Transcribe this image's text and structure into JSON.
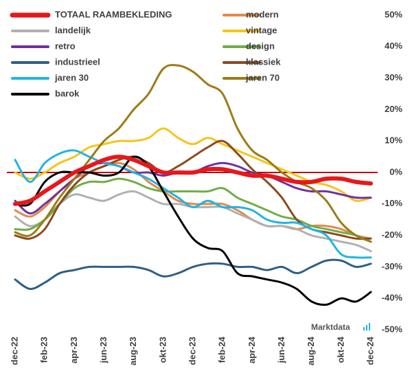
{
  "chart_data": {
    "type": "line",
    "categories": [
      "dec-22",
      null,
      "feb-23",
      null,
      "apr-23",
      null,
      "jun-23",
      null,
      "aug-23",
      null,
      "okt-23",
      null,
      "dec-23",
      null,
      "feb-24",
      null,
      "apr-24",
      null,
      "jun-24",
      null,
      "aug-24",
      null,
      "okt-24",
      null,
      "dec-24"
    ],
    "series": [
      {
        "name": "TOTAAL RAAMBEKLEDING",
        "color": "#e8171b",
        "width": 6,
        "values": [
          -10,
          -9,
          -6,
          -3,
          0,
          2,
          4,
          5,
          4,
          2,
          0,
          0,
          0,
          1,
          1,
          0,
          -1,
          -1,
          -2,
          -3,
          -3,
          -2,
          -2,
          -3,
          -3.5
        ]
      },
      {
        "name": "modern",
        "color": "#e3894a",
        "width": 3,
        "values": [
          -12,
          -14,
          -11,
          -6,
          -2,
          0,
          2,
          3,
          1,
          -3,
          -6,
          -9,
          -10,
          -10,
          -10,
          -12,
          -15,
          -17,
          -17,
          -18,
          -17,
          -17,
          -18,
          -20,
          -21
        ]
      },
      {
        "name": "landelijk",
        "color": "#b0b0b0",
        "width": 3,
        "values": [
          -14,
          -17,
          -15,
          -10,
          -7,
          -8,
          -9,
          -7,
          -6,
          -8,
          -10,
          -10,
          -11,
          -11,
          -11,
          -13,
          -15,
          -17,
          -17,
          -18,
          -20,
          -21,
          -22,
          -23,
          -25
        ]
      },
      {
        "name": "vintage",
        "color": "#f5c518",
        "width": 3,
        "values": [
          0,
          -2,
          0,
          3,
          5,
          8,
          9,
          10,
          10,
          11,
          14,
          11,
          9,
          11,
          9,
          7,
          5,
          3,
          1,
          -1,
          -3,
          -4,
          -6,
          -9,
          -8
        ]
      },
      {
        "name": "retro",
        "color": "#7030a0",
        "width": 3,
        "values": [
          -9,
          -13,
          -10,
          -6,
          -2,
          2,
          3,
          2,
          0,
          0,
          -1,
          0,
          0,
          2,
          3,
          2,
          0,
          -1,
          -3,
          -5,
          -6,
          -6,
          -7,
          -8,
          -8
        ]
      },
      {
        "name": "design",
        "color": "#70ad47",
        "width": 3,
        "values": [
          -18,
          -18,
          -15,
          -10,
          -5,
          -3,
          -3,
          -2,
          -3,
          -5,
          -6,
          -6,
          -6,
          -6,
          -5,
          -8,
          -10,
          -12,
          -14,
          -15,
          -17,
          -18,
          -19,
          -20,
          -22
        ]
      },
      {
        "name": "industrieel",
        "color": "#2e5f86",
        "width": 3,
        "values": [
          -34,
          -37,
          -35,
          -32,
          -31,
          -30,
          -30,
          -30,
          -30,
          -31,
          -33,
          -32,
          -30,
          -29,
          -29,
          -30,
          -30,
          -31,
          -30,
          -32,
          -30,
          -28,
          -28,
          -30,
          -29
        ]
      },
      {
        "name": "klassiek",
        "color": "#8b4a1e",
        "width": 3,
        "values": [
          -20,
          -21,
          -18,
          -10,
          -4,
          0,
          2,
          4,
          5,
          3,
          0,
          2,
          5,
          8,
          10,
          6,
          1,
          -3,
          -8,
          -15,
          -18,
          -19,
          -20,
          -21,
          -21
        ]
      },
      {
        "name": "jaren 30",
        "color": "#1fb4e6",
        "width": 3,
        "values": [
          4,
          -3,
          3,
          6,
          7,
          5,
          3,
          2,
          0,
          -2,
          -5,
          -8,
          -11,
          -9,
          -11,
          -11,
          -12,
          -15,
          -16,
          -16,
          -18,
          -20,
          -26,
          -27,
          -27
        ]
      },
      {
        "name": "jaren 70",
        "color": "#9c7c14",
        "width": 3,
        "values": [
          -19,
          -20,
          -15,
          -8,
          -2,
          4,
          10,
          14,
          20,
          25,
          33,
          34,
          32,
          28,
          25,
          14,
          7,
          4,
          0,
          -3,
          -5,
          -9,
          -16,
          -20,
          -22
        ]
      },
      {
        "name": "barok",
        "color": "#000000",
        "width": 3,
        "values": [
          -10,
          -10,
          -3,
          0,
          0,
          0,
          -1,
          0,
          5,
          2,
          -6,
          -14,
          -21,
          -24,
          -25,
          -32,
          -33,
          -34,
          -35,
          -37,
          -41,
          -42,
          -40,
          -41,
          -38
        ]
      }
    ],
    "ylim": [
      -50,
      50
    ],
    "yticks": [
      {
        "value": -50,
        "label": "-50%"
      },
      {
        "value": -40,
        "label": "-40%"
      },
      {
        "value": -30,
        "label": "-30%"
      },
      {
        "value": -20,
        "label": "-20%"
      },
      {
        "value": -10,
        "label": "-10%"
      },
      {
        "value": 0,
        "label": "0%"
      },
      {
        "value": 10,
        "label": "10%"
      },
      {
        "value": 20,
        "label": "20%"
      },
      {
        "value": 30,
        "label": "30%"
      },
      {
        "value": 40,
        "label": "40%"
      },
      {
        "value": 50,
        "label": "50%"
      }
    ],
    "zero_line_color": "#c00000",
    "watermark": "Marktdata"
  }
}
